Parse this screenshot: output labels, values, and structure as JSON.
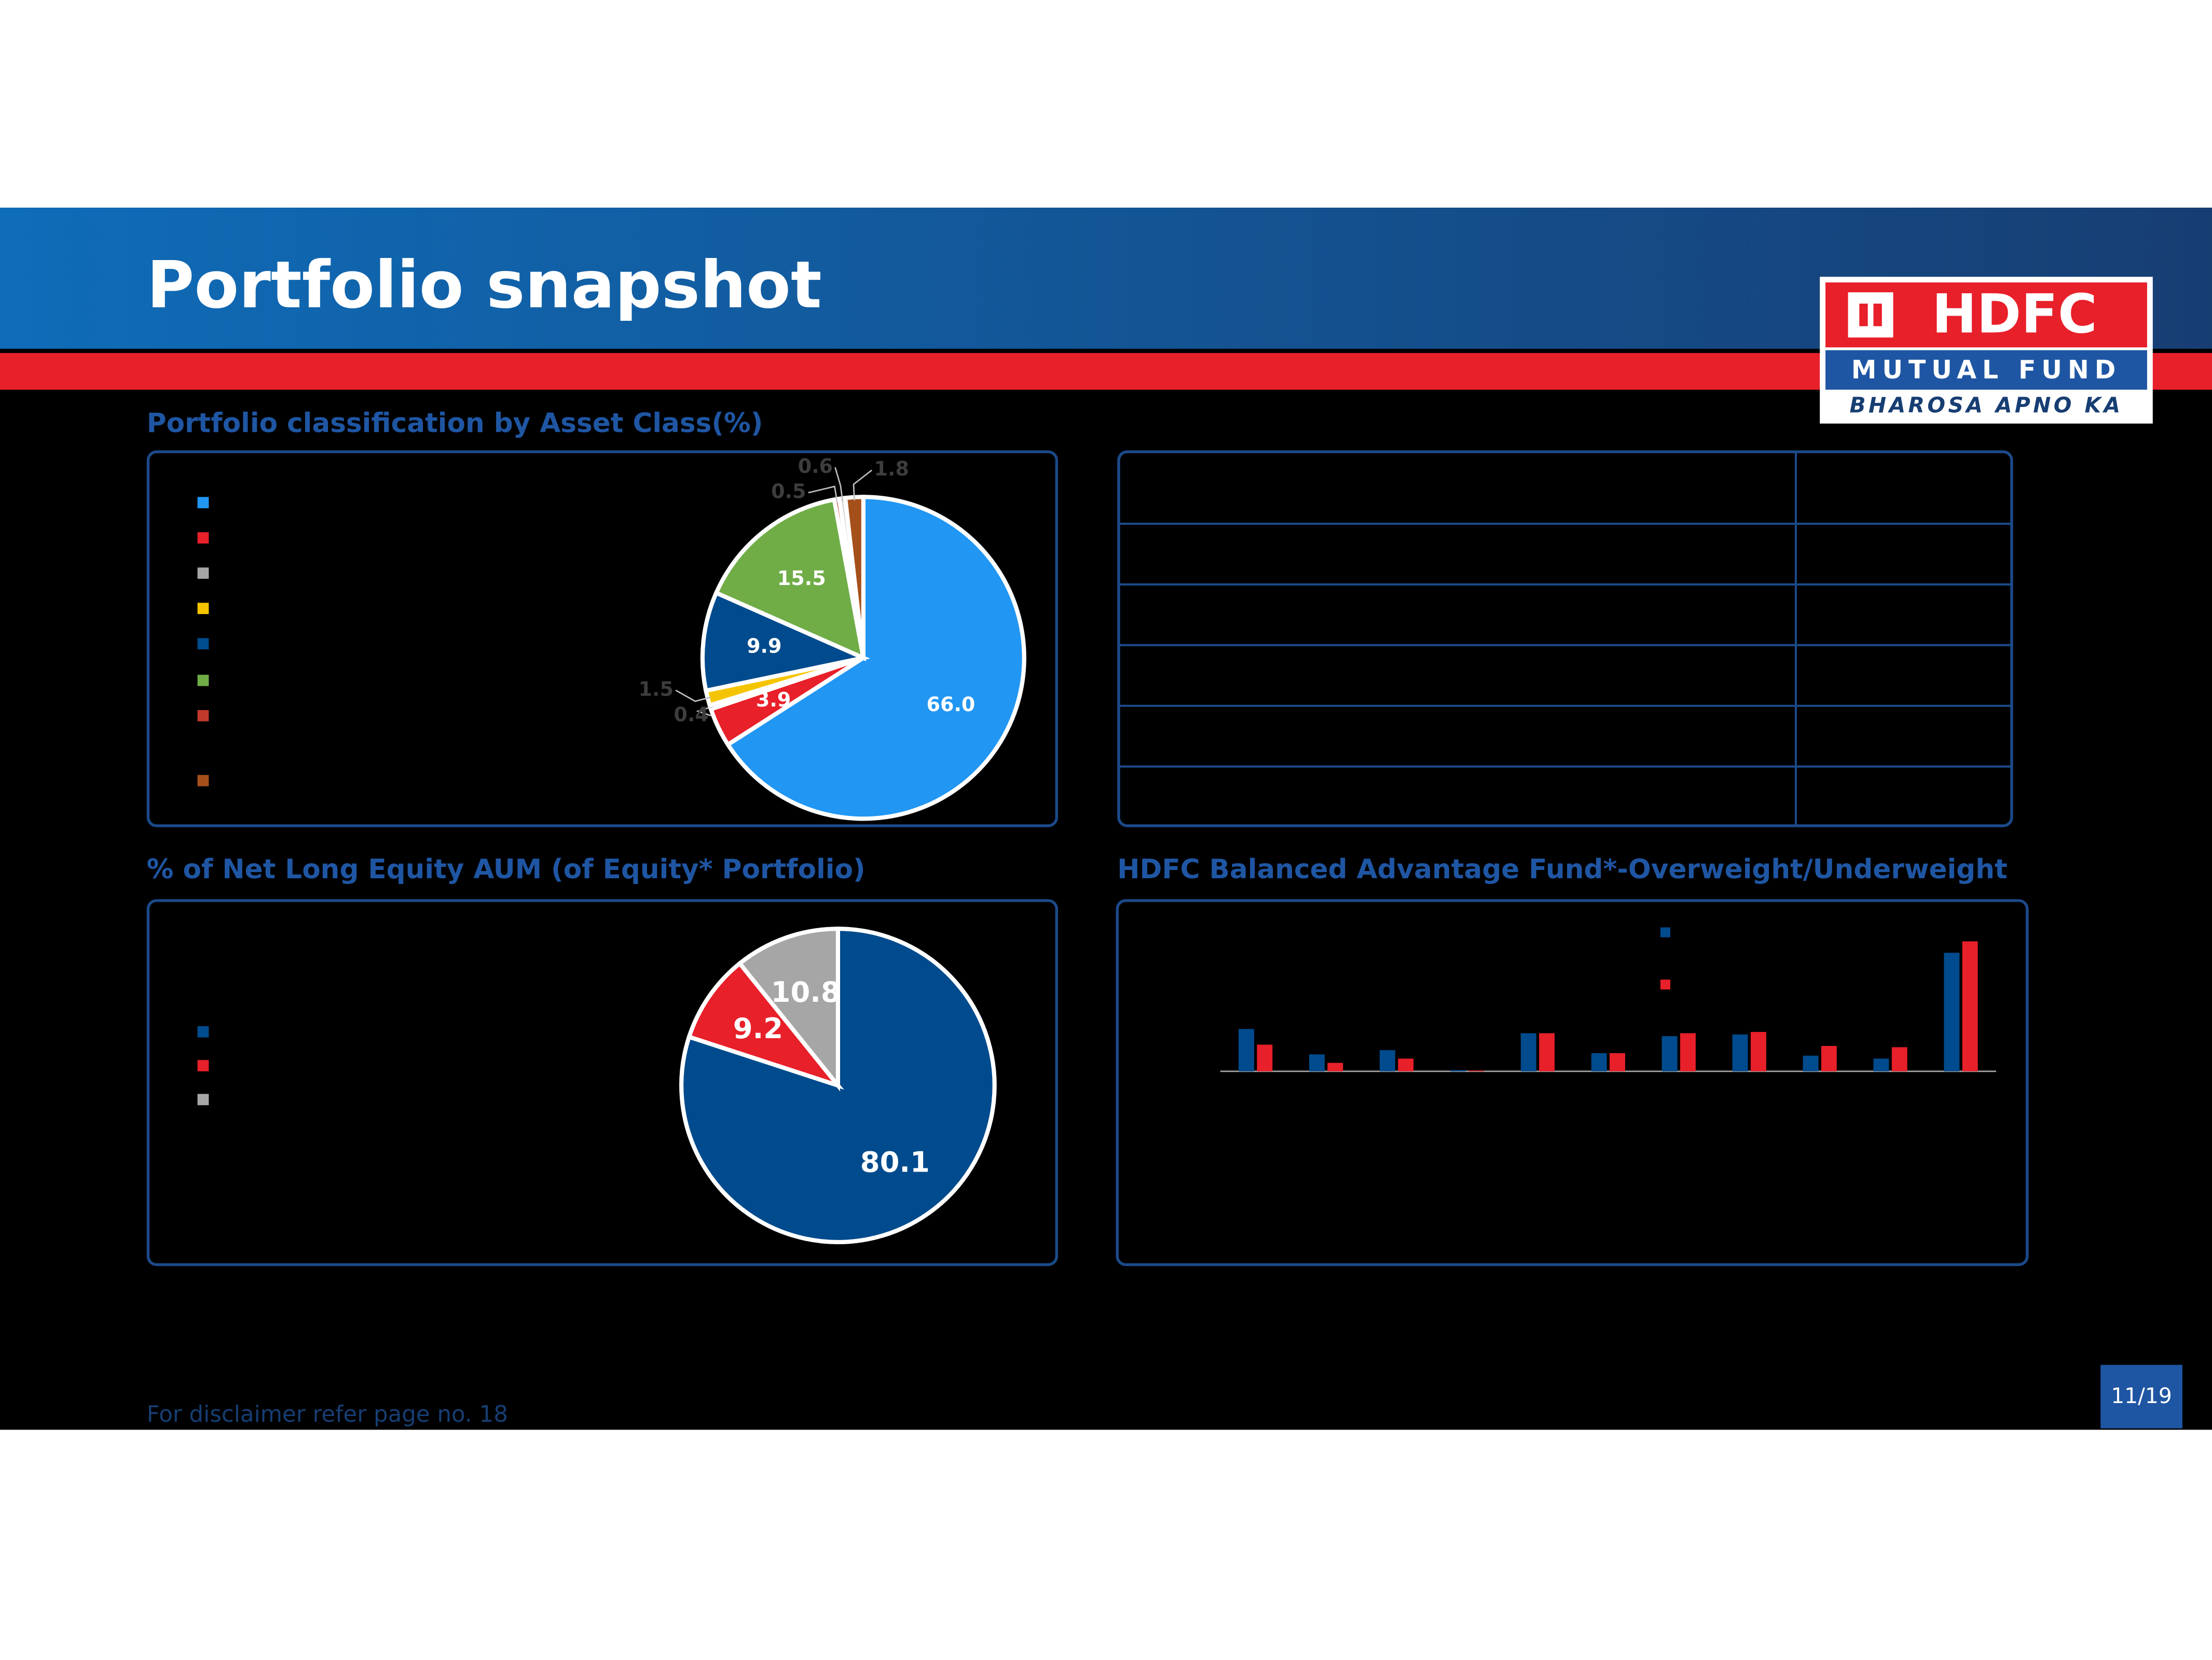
{
  "header": {
    "title": "Portfolio snapshot"
  },
  "logo": {
    "brand": "HDFC",
    "line1": "MUTUAL FUND",
    "line2": "BHAROSA APNO KA"
  },
  "chart_data": [
    {
      "type": "pie",
      "title": "Portfolio classification by Asset Class(%)",
      "values": [
        66.0,
        3.9,
        0.4,
        1.5,
        9.9,
        15.5,
        0.5,
        0.6,
        1.8
      ],
      "value_labels": [
        "66.0",
        "3.9",
        "0.4",
        "1.5",
        "9.9",
        "15.5",
        "0.5",
        "0.6",
        "1.8"
      ],
      "colors": [
        "#2196f3",
        "#e8202a",
        "#a6a6a6",
        "#f5c400",
        "#004b8d",
        "#70ad47",
        "#c0392b",
        "#d9d9d9",
        "#a5501b"
      ]
    },
    {
      "type": "pie",
      "title": "% of Net Long Equity AUM (of Equity* Portfolio)",
      "values": [
        80.1,
        9.2,
        10.8
      ],
      "colors": [
        "#004b8d",
        "#e8202a",
        "#a6a6a6"
      ]
    },
    {
      "type": "bar",
      "title": "HDFC Balanced Advantage Fund*-Overweight/Underweight",
      "categories": [
        null,
        null,
        null,
        null,
        null,
        null,
        null,
        null,
        null,
        null,
        null
      ],
      "series": [
        {
          "color": "#004b8d",
          "values": [
            10,
            4,
            5,
            0.3,
            9,
            4.3,
            8.3,
            8.7,
            3.7,
            3,
            28
          ]
        },
        {
          "color": "#e8202a",
          "values": [
            6.3,
            2,
            3,
            0.2,
            9,
            4.3,
            9,
            9.3,
            6,
            5.7,
            30.7
          ]
        }
      ]
    }
  ],
  "footer": {
    "disclaimer": "For disclaimer refer page no. 18",
    "page": "11/19"
  }
}
